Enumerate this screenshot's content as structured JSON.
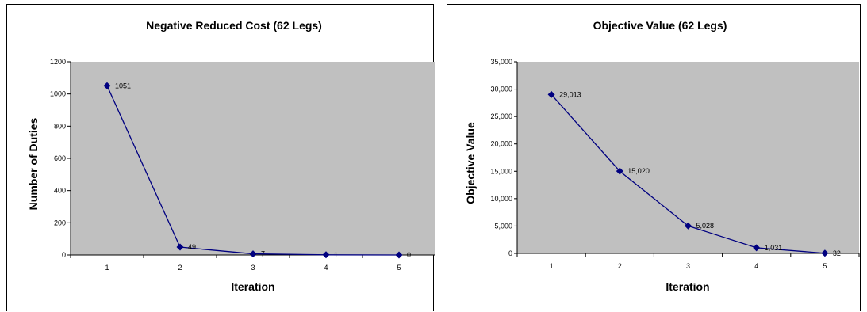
{
  "chart_data": [
    {
      "type": "line",
      "title": "Negative Reduced Cost (62 Legs)",
      "xlabel": "Iteration",
      "ylabel": "Number of Duties",
      "categories": [
        "1",
        "2",
        "3",
        "4",
        "5"
      ],
      "series": [
        {
          "values": [
            1051,
            49,
            7,
            1,
            0
          ]
        }
      ],
      "data_labels": [
        "1051",
        "49",
        "7",
        "1",
        "0"
      ],
      "ylim": [
        0,
        1200
      ],
      "yticks": [
        0,
        200,
        400,
        600,
        800,
        1000,
        1200
      ],
      "ytick_labels": [
        "0",
        "200",
        "400",
        "600",
        "800",
        "1000",
        "1200"
      ],
      "grid": false,
      "plot_background": "#c0c0c0",
      "line_color": "#000080"
    },
    {
      "type": "line",
      "title": "Objective Value (62 Legs)",
      "xlabel": "Iteration",
      "ylabel": "Objective Value",
      "categories": [
        "1",
        "2",
        "3",
        "4",
        "5"
      ],
      "series": [
        {
          "values": [
            29013,
            15020,
            5028,
            1031,
            32
          ]
        }
      ],
      "data_labels": [
        "29,013",
        "15,020",
        "5,028",
        "1,031",
        "32"
      ],
      "ylim": [
        0,
        35000
      ],
      "yticks": [
        0,
        5000,
        10000,
        15000,
        20000,
        25000,
        30000,
        35000
      ],
      "ytick_labels": [
        "0",
        "5,000",
        "10,000",
        "15,000",
        "20,000",
        "25,000",
        "30,000",
        "35,000"
      ],
      "grid": false,
      "plot_background": "#c0c0c0",
      "line_color": "#000080"
    }
  ]
}
